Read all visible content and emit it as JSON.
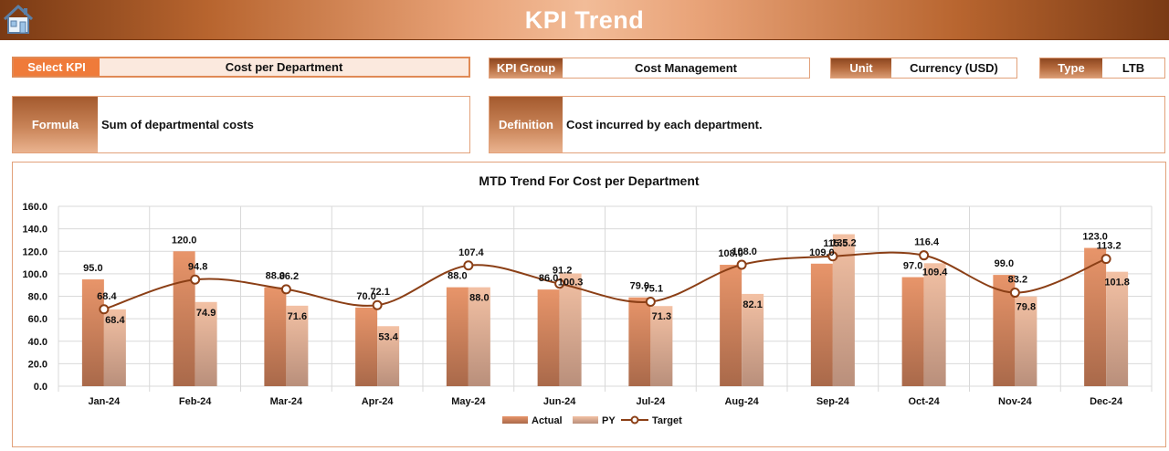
{
  "header": {
    "title": "KPI Trend",
    "home_icon": "home-icon"
  },
  "filters": {
    "select_kpi": {
      "label": "Select KPI",
      "value": "Cost per Department"
    },
    "kpi_group": {
      "label": "KPI Group",
      "value": "Cost Management"
    },
    "unit": {
      "label": "Unit",
      "value": "Currency (USD)"
    },
    "type": {
      "label": "Type",
      "value": "LTB"
    }
  },
  "formula": {
    "label": "Formula",
    "value": "Sum of departmental costs"
  },
  "definition": {
    "label": "Definition",
    "value": "Cost incurred by each department."
  },
  "colors": {
    "actual": "#e8956a",
    "py": "#f3c1a4",
    "target": "#8b3f16",
    "accent": "#ef7b3a"
  },
  "chart_data": {
    "type": "bar",
    "title": "MTD Trend For Cost per Department",
    "categories": [
      "Jan-24",
      "Feb-24",
      "Mar-24",
      "Apr-24",
      "May-24",
      "Jun-24",
      "Jul-24",
      "Aug-24",
      "Sep-24",
      "Oct-24",
      "Nov-24",
      "Dec-24"
    ],
    "ylim": [
      0,
      160
    ],
    "yticks": [
      "0.0",
      "20.0",
      "40.0",
      "60.0",
      "80.0",
      "100.0",
      "120.0",
      "140.0",
      "160.0"
    ],
    "grid": true,
    "legend_position": "bottom",
    "series": [
      {
        "name": "Actual",
        "kind": "bar",
        "values": [
          95.0,
          120.0,
          88.0,
          70.0,
          88.0,
          86.0,
          79.0,
          108.0,
          109.0,
          97.0,
          99.0,
          123.0
        ],
        "labels": [
          "95.0",
          "120.0",
          "88.0",
          "70.0",
          "88.0",
          "86.0",
          "79.0",
          "108.0",
          "109.0",
          "97.0",
          "99.0",
          "123.0"
        ]
      },
      {
        "name": "PY",
        "kind": "bar",
        "values": [
          68.4,
          74.9,
          71.6,
          53.4,
          88.0,
          100.3,
          71.3,
          82.1,
          135.2,
          109.4,
          79.8,
          101.8
        ],
        "labels": [
          "68.4",
          "74.9",
          "71.6",
          "53.4",
          "88.0",
          "100.3",
          "71.3",
          "82.1",
          "135.2",
          "109.4",
          "79.8",
          "101.8"
        ]
      },
      {
        "name": "Target",
        "kind": "line",
        "values": [
          68.4,
          94.8,
          86.2,
          72.1,
          107.4,
          91.2,
          75.1,
          108.0,
          115.5,
          116.4,
          83.2,
          113.2
        ],
        "labels": [
          "68.4",
          "94.8",
          "86.2",
          "72.1",
          "107.4",
          "91.2",
          "75.1",
          "108.0",
          "115.5",
          "116.4",
          "83.2",
          "113.2"
        ]
      }
    ]
  }
}
